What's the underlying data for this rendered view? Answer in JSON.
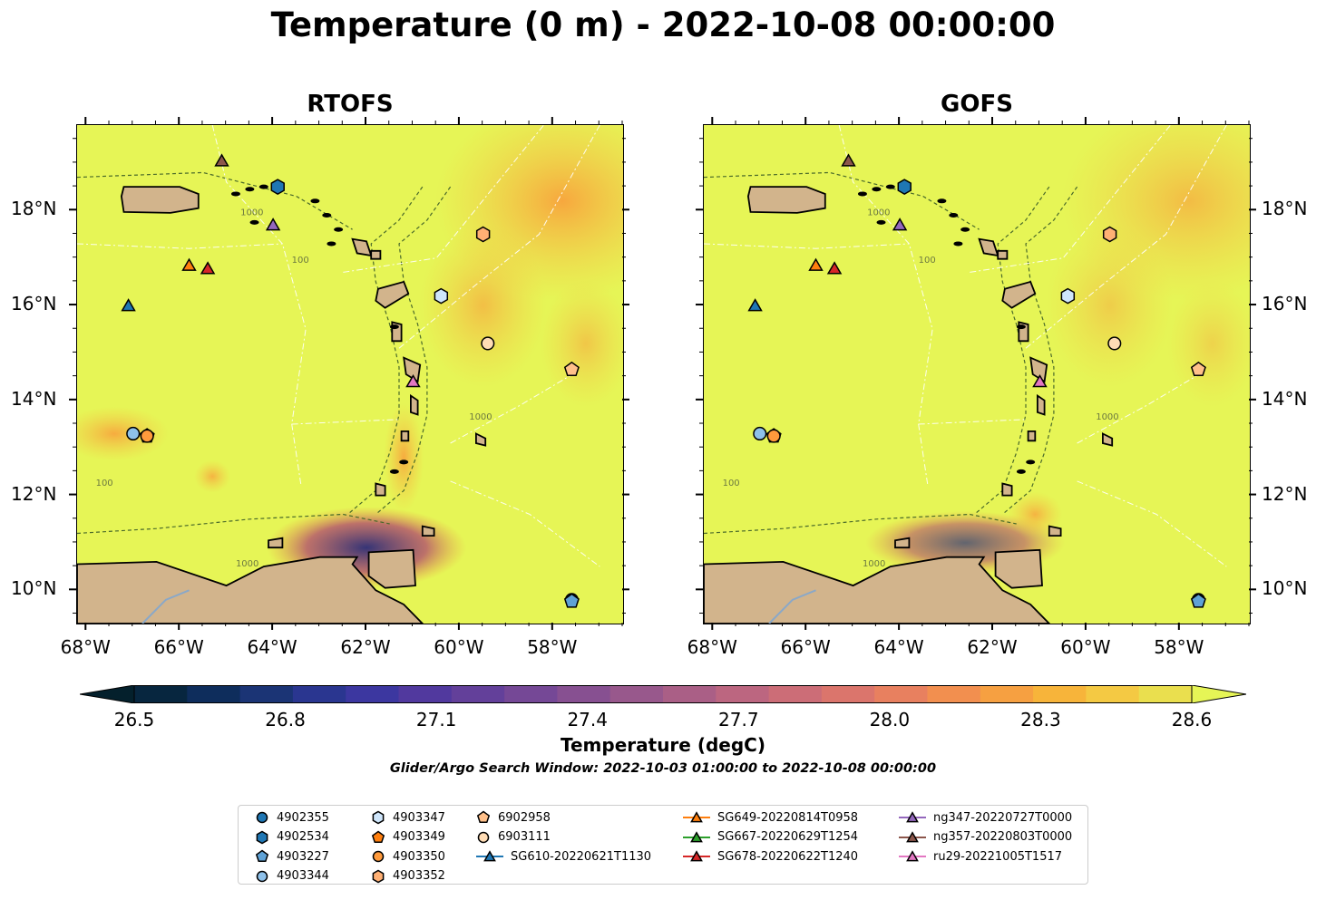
{
  "title": "Temperature (0 m) - 2022-10-08 00:00:00",
  "panels": [
    {
      "id": "rtofs",
      "title": "RTOFS"
    },
    {
      "id": "gofs",
      "title": "GOFS"
    }
  ],
  "map_extent": {
    "lon_min": -68.2,
    "lon_max": -56.5,
    "lat_min": 9.3,
    "lat_max": 19.8
  },
  "x_ticks": [
    {
      "lon": -68,
      "label": "68°W"
    },
    {
      "lon": -66,
      "label": "66°W"
    },
    {
      "lon": -64,
      "label": "64°W"
    },
    {
      "lon": -62,
      "label": "62°W"
    },
    {
      "lon": -60,
      "label": "60°W"
    },
    {
      "lon": -58,
      "label": "58°W"
    }
  ],
  "y_ticks": [
    {
      "lat": 18,
      "label": "18°N"
    },
    {
      "lat": 16,
      "label": "16°N"
    },
    {
      "lat": 14,
      "label": "14°N"
    },
    {
      "lat": 12,
      "label": "12°N"
    },
    {
      "lat": 10,
      "label": "10°N"
    }
  ],
  "contour_label": "1000",
  "contour_label_alt": "100",
  "colors": {
    "land": "#d2b48c",
    "ocean_warm": "#e6f556",
    "marker_edge": "#000000"
  },
  "colorbar": {
    "title": "Temperature (degC)",
    "ticks": [
      {
        "value": 26.5,
        "label": "26.5"
      },
      {
        "value": 26.8,
        "label": "26.8"
      },
      {
        "value": 27.1,
        "label": "27.1"
      },
      {
        "value": 27.4,
        "label": "27.4"
      },
      {
        "value": 27.7,
        "label": "27.7"
      },
      {
        "value": 28.0,
        "label": "28.0"
      },
      {
        "value": 28.3,
        "label": "28.3"
      },
      {
        "value": 28.6,
        "label": "28.6"
      }
    ],
    "range": [
      26.5,
      28.6
    ],
    "colormap": "thermal"
  },
  "search_window": "Glider/Argo Search Window: 2022-10-03 01:00:00 to 2022-10-08 00:00:00",
  "platforms": [
    {
      "label": "4902355",
      "marker": "circle",
      "color": "#1f77b4",
      "lon": -57.6,
      "lat": 9.8
    },
    {
      "label": "4902534",
      "marker": "hexagon",
      "color": "#1f77b4",
      "lon": -63.9,
      "lat": 18.5
    },
    {
      "label": "4903227",
      "marker": "pentagon",
      "color": "#5fa2d6",
      "lon": -57.6,
      "lat": 9.77
    },
    {
      "label": "4903344",
      "marker": "circle",
      "color": "#8ec1ea",
      "lon": -67.0,
      "lat": 13.3
    },
    {
      "label": "4903347",
      "marker": "hexagon",
      "color": "#cfe6fb",
      "lon": -60.4,
      "lat": 16.2
    },
    {
      "label": "4903349",
      "marker": "pentagon",
      "color": "#ff7f0e",
      "lon": -66.7,
      "lat": 13.25
    },
    {
      "label": "4903350",
      "marker": "circle",
      "color": "#ff9a3c",
      "lon": -66.7,
      "lat": 13.25
    },
    {
      "label": "4903352",
      "marker": "hexagon",
      "color": "#ffb074",
      "lon": -59.5,
      "lat": 17.5
    },
    {
      "label": "6902958",
      "marker": "pentagon",
      "color": "#ffc08a",
      "lon": -57.6,
      "lat": 14.65
    },
    {
      "label": "6903111",
      "marker": "circle",
      "color": "#ffdcb5",
      "lon": -59.4,
      "lat": 15.2
    },
    {
      "label": "SG610-20220621T1130",
      "marker": "triangle",
      "color": "#1f77b4",
      "lon": -67.1,
      "lat": 16.0,
      "line": true
    },
    {
      "label": "SG649-20220814T0958",
      "marker": "triangle",
      "color": "#ff7f0e",
      "lon": -65.8,
      "lat": 16.85,
      "line": true
    },
    {
      "label": "SG667-20220629T1254",
      "marker": "triangle",
      "color": "#2ca02c",
      "line": true
    },
    {
      "label": "SG678-20220622T1240",
      "marker": "triangle",
      "color": "#d62728",
      "lon": -65.4,
      "lat": 16.78,
      "line": true
    },
    {
      "label": "ng347-20220727T0000",
      "marker": "triangle",
      "color": "#9467bd",
      "lon": -64.0,
      "lat": 17.7,
      "line": true
    },
    {
      "label": "ng357-20220803T0000",
      "marker": "triangle",
      "color": "#8c564b",
      "lon": -65.1,
      "lat": 19.05,
      "line": true
    },
    {
      "label": "ru29-20221005T1517",
      "marker": "triangle",
      "color": "#e377c2",
      "lon": -61.0,
      "lat": 14.4,
      "line": true
    }
  ]
}
